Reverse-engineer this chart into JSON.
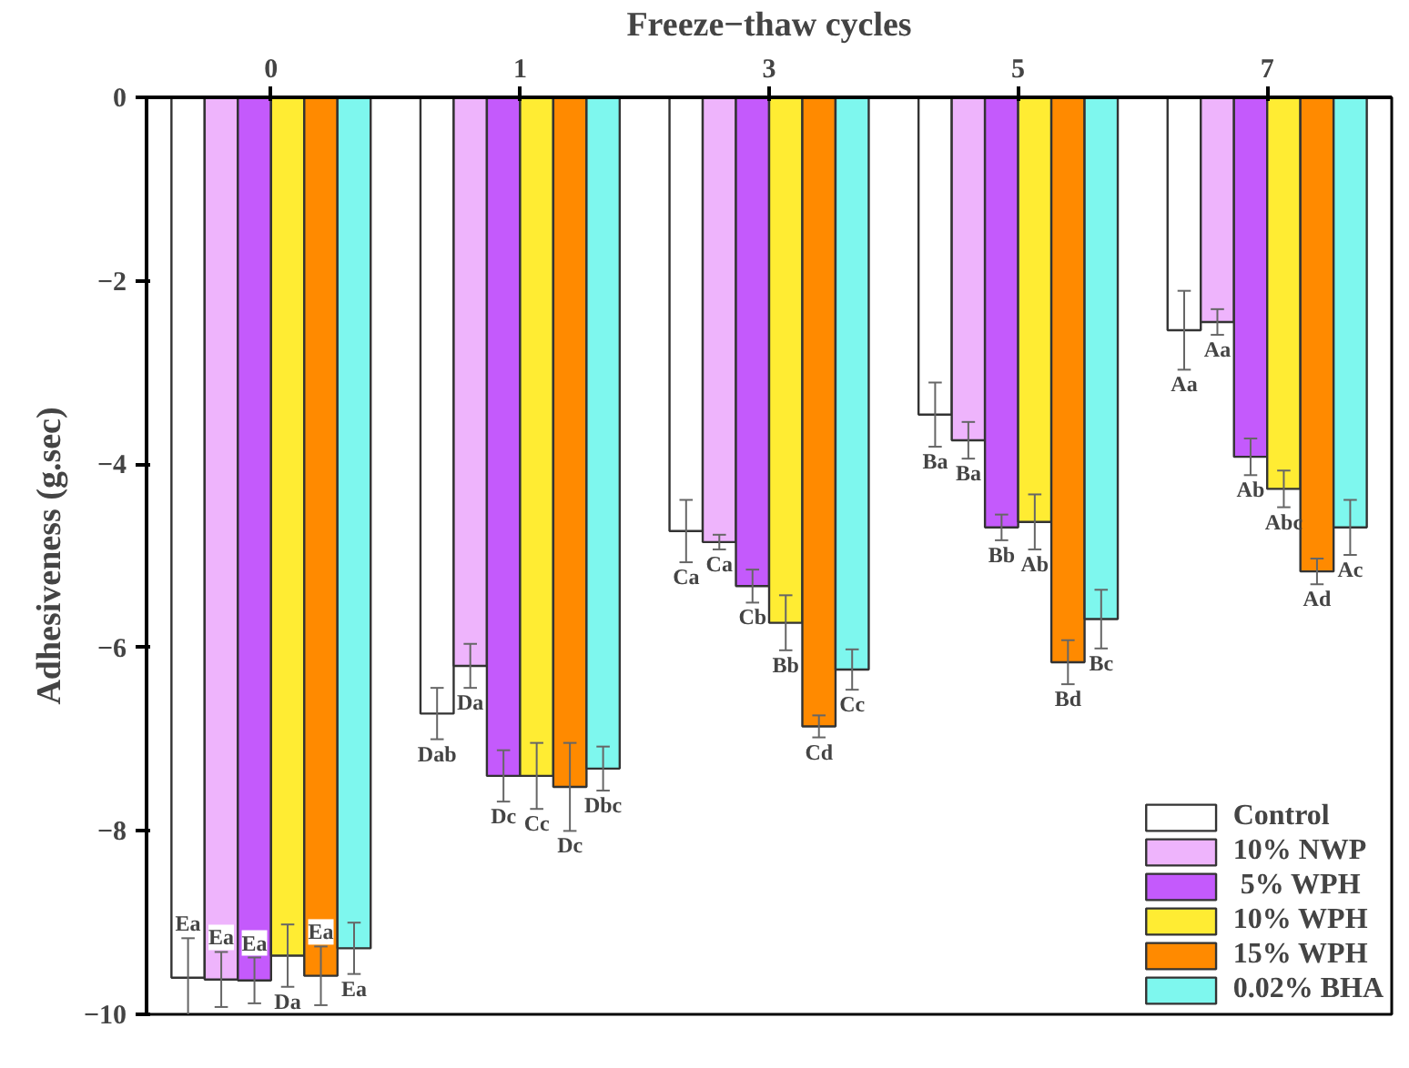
{
  "chart_data": {
    "type": "bar",
    "xlabel": "Freeze−thaw cycles",
    "ylabel": "Adhesiveness (g.sec)",
    "categories": [
      "0",
      "1",
      "3",
      "5",
      "7"
    ],
    "ylim": [
      -10,
      0
    ],
    "yticks": [
      0,
      -2,
      -4,
      -6,
      -8,
      -10
    ],
    "grid": false,
    "legend": "bottom right",
    "series": [
      {
        "name": "Control",
        "color": "#ffffff",
        "values": [
          -9.6,
          -6.72,
          -4.73,
          -3.46,
          -2.54
        ],
        "errors": [
          0.43,
          0.28,
          0.34,
          0.35,
          0.43
        ],
        "value_labels": [
          "Ea",
          "Dab",
          "Ca",
          "Ba",
          "Aa"
        ]
      },
      {
        "name": "10% NWP",
        "color": "#eeb4fc",
        "values": [
          -9.62,
          -6.2,
          -4.85,
          -3.74,
          -2.45
        ],
        "errors": [
          0.3,
          0.24,
          0.08,
          0.2,
          0.14
        ],
        "value_labels": [
          "Ea",
          "Da",
          "Ca",
          "Ba",
          "Aa"
        ]
      },
      {
        "name": " 5% WPH",
        "color": "#c45afc",
        "values": [
          -9.63,
          -7.4,
          -5.33,
          -4.69,
          -3.92
        ],
        "errors": [
          0.25,
          0.28,
          0.18,
          0.14,
          0.2
        ],
        "value_labels": [
          "Ea",
          "Dc",
          "Cb",
          "Bb",
          "Ab"
        ]
      },
      {
        "name": "10% WPH",
        "color": "#ffec33",
        "values": [
          -9.36,
          -7.4,
          -5.73,
          -4.63,
          -4.27
        ],
        "errors": [
          0.34,
          0.36,
          0.3,
          0.3,
          0.2
        ],
        "value_labels": [
          "Da",
          "Cc",
          "Bb",
          "Ab",
          "Abc"
        ]
      },
      {
        "name": "15% WPH",
        "color": "#ff8a00",
        "values": [
          -9.58,
          -7.52,
          -6.86,
          -6.16,
          -5.17
        ],
        "errors": [
          0.32,
          0.48,
          0.12,
          0.24,
          0.14
        ],
        "value_labels": [
          "Ea",
          "Dc",
          "Cd",
          "Bd",
          "Ad"
        ]
      },
      {
        "name": "0.02% BHA",
        "color": "#7ef7ee",
        "values": [
          -9.28,
          -7.32,
          -6.24,
          -5.69,
          -4.69
        ],
        "errors": [
          0.28,
          0.24,
          0.22,
          0.32,
          0.3
        ],
        "value_labels": [
          "Ea",
          "Dbc",
          "Cc",
          "Bc",
          "Ac"
        ]
      }
    ]
  }
}
